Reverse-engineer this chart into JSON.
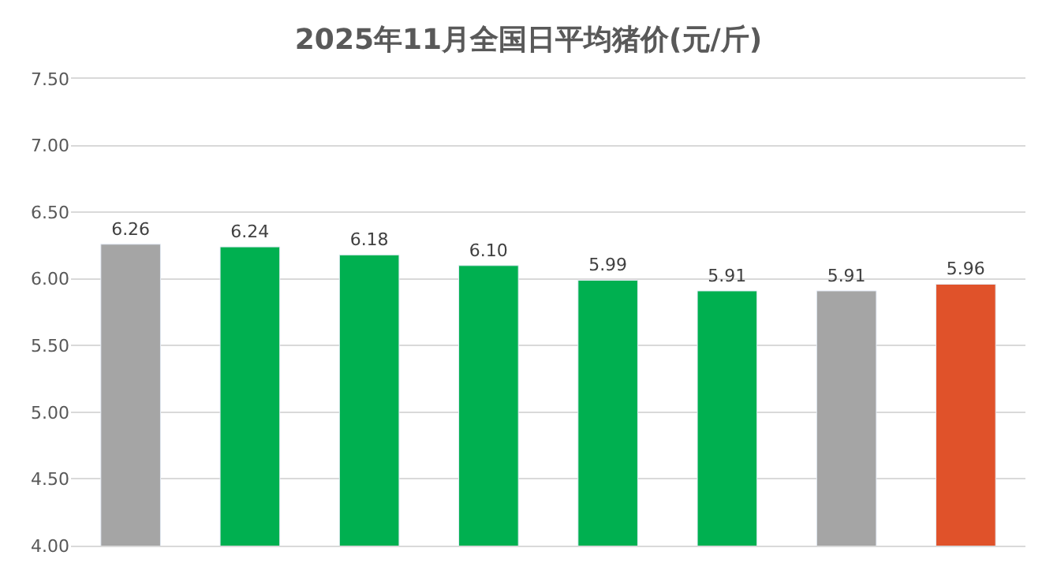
{
  "chart_data": {
    "type": "bar",
    "title": "2025年11月全国日平均猪价(元/斤)",
    "categories": [
      null,
      null,
      null,
      null,
      null,
      null,
      null,
      null
    ],
    "values": [
      6.26,
      6.24,
      6.18,
      6.1,
      5.99,
      5.91,
      5.91,
      5.96
    ],
    "colors": [
      "#a5a5a5",
      "#00b050",
      "#00b050",
      "#00b050",
      "#00b050",
      "#00b050",
      "#a5a5a5",
      "#e0522a"
    ],
    "value_labels": [
      "6.26",
      "6.24",
      "6.18",
      "6.10",
      "5.99",
      "5.91",
      "5.91",
      "5.96"
    ],
    "ylim": [
      4.0,
      7.5
    ],
    "yticks": [
      {
        "value": 4.0,
        "label": "4.00"
      },
      {
        "value": 4.5,
        "label": "4.50"
      },
      {
        "value": 5.0,
        "label": "5.00"
      },
      {
        "value": 5.5,
        "label": "5.50"
      },
      {
        "value": 6.0,
        "label": "6.00"
      },
      {
        "value": 6.5,
        "label": "6.50"
      },
      {
        "value": 7.0,
        "label": "7.00"
      },
      {
        "value": 7.5,
        "label": "7.50"
      }
    ],
    "grid": "y"
  }
}
